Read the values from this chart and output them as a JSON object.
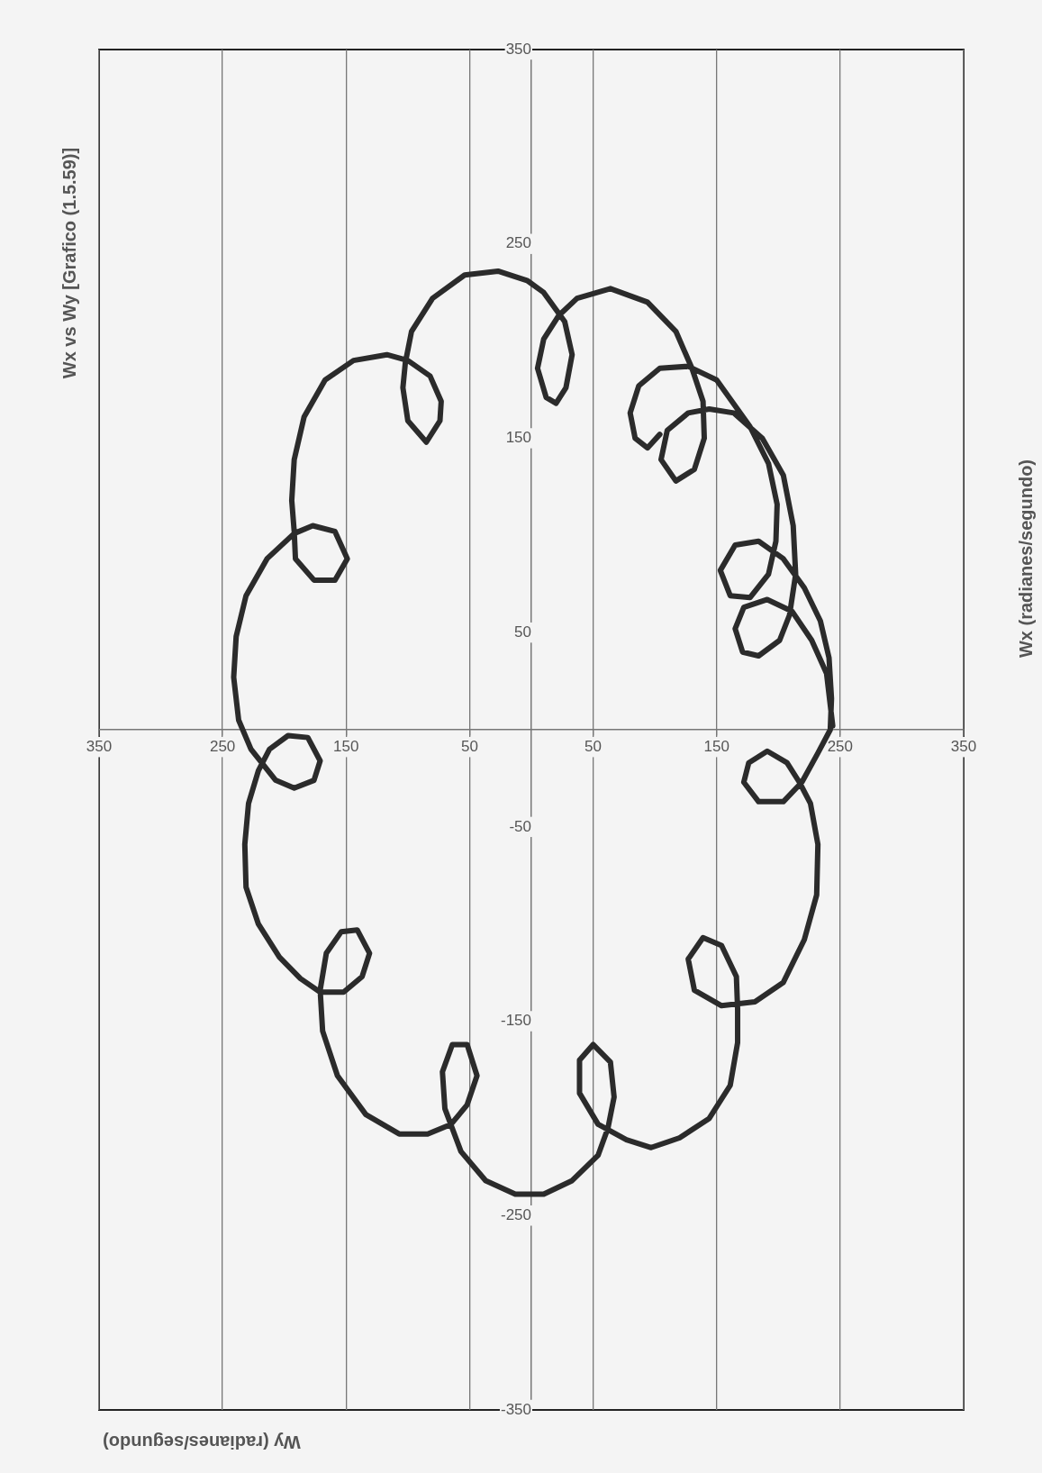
{
  "chart_data": {
    "type": "line",
    "title": "Wx vs Wy [Grafico (1.5.59)]",
    "xlabel": "Wy (radianes/segundo)",
    "ylabel": "Wx (radianes/segundo)",
    "color": "#2b2b2b",
    "marker": "none",
    "grid": "x",
    "xlim": [
      350,
      -350
    ],
    "xticks": [
      350,
      250,
      150,
      50,
      {
        "value": -50,
        "label": "50"
      },
      {
        "value": -150,
        "label": "150"
      },
      {
        "value": -250,
        "label": "250"
      },
      {
        "value": -350,
        "label": "350"
      }
    ],
    "ylim": [
      -350,
      350
    ],
    "yticks": [
      -350,
      -250,
      -150,
      -50,
      50,
      150,
      250,
      350
    ],
    "x": [
      -244,
      -239,
      -227,
      -211,
      -191,
      -172,
      -165,
      -171,
      -184,
      -201,
      -209,
      -214,
      -212,
      -204,
      -187,
      -164,
      -144,
      -127,
      -110,
      -105,
      -117,
      -132,
      -140,
      -139,
      -130,
      -117,
      -94,
      -64,
      -37,
      -22,
      -10,
      -5,
      -12,
      -20,
      -28,
      -33,
      -27,
      -10,
      3,
      27,
      54,
      80,
      97,
      102,
      104,
      100,
      85,
      74,
      73,
      82,
      100,
      117,
      144,
      167,
      184,
      192,
      194,
      192,
      191,
      176,
      159,
      149,
      159,
      177,
      192,
      214,
      231,
      239,
      241,
      237,
      227,
      217,
      207,
      192,
      176,
      171,
      181,
      197,
      212,
      221,
      229,
      232,
      231,
      221,
      204,
      187,
      171,
      152,
      137,
      131,
      141,
      154,
      166,
      171,
      169,
      157,
      134,
      107,
      84,
      65,
      52,
      44,
      52,
      64,
      72,
      70,
      57,
      37,
      13,
      -10,
      -33,
      -54,
      -62,
      -67,
      -64,
      -50,
      -39,
      -39,
      -54,
      -77,
      -97,
      -120,
      -144,
      -161,
      -167,
      -167,
      -166,
      -154,
      -139,
      -127,
      -132,
      -154,
      -181,
      -204,
      -221,
      -231,
      -232,
      -226,
      -217,
      -207,
      -191,
      -176,
      -172,
      -184,
      -204,
      -219,
      -232,
      -242,
      -243,
      -241,
      -234,
      -221,
      -204,
      -184,
      -165,
      -153,
      -161,
      -177,
      -192,
      -198,
      -199,
      -192,
      -177,
      -150,
      -127,
      -104,
      -87,
      -80,
      -84,
      -94,
      -104
    ],
    "values": [
      2,
      29,
      46,
      61,
      67,
      63,
      52,
      40,
      38,
      46,
      59,
      80,
      105,
      131,
      150,
      163,
      165,
      163,
      154,
      139,
      128,
      134,
      150,
      169,
      186,
      205,
      220,
      227,
      222,
      213,
      201,
      186,
      171,
      168,
      176,
      193,
      210,
      225,
      231,
      236,
      234,
      222,
      205,
      189,
      176,
      159,
      148,
      159,
      169,
      182,
      190,
      193,
      190,
      180,
      161,
      139,
      118,
      102,
      88,
      77,
      77,
      88,
      102,
      105,
      101,
      88,
      69,
      48,
      27,
      5,
      -10,
      -18,
      -26,
      -30,
      -26,
      -16,
      -4,
      -3,
      -10,
      -21,
      -38,
      -59,
      -81,
      -100,
      -117,
      -128,
      -135,
      -135,
      -127,
      -115,
      -103,
      -104,
      -115,
      -134,
      -155,
      -178,
      -198,
      -208,
      -208,
      -203,
      -193,
      -178,
      -162,
      -162,
      -176,
      -195,
      -217,
      -232,
      -239,
      -239,
      -232,
      -219,
      -205,
      -189,
      -171,
      -162,
      -170,
      -187,
      -203,
      -211,
      -215,
      -210,
      -200,
      -183,
      -161,
      -144,
      -127,
      -111,
      -107,
      -118,
      -134,
      -142,
      -140,
      -130,
      -108,
      -85,
      -59,
      -38,
      -27,
      -17,
      -11,
      -17,
      -27,
      -37,
      -37,
      -27,
      -12,
      0,
      16,
      37,
      56,
      73,
      88,
      97,
      95,
      82,
      69,
      68,
      80,
      97,
      116,
      137,
      156,
      180,
      187,
      186,
      177,
      163,
      150,
      145,
      152
    ]
  }
}
